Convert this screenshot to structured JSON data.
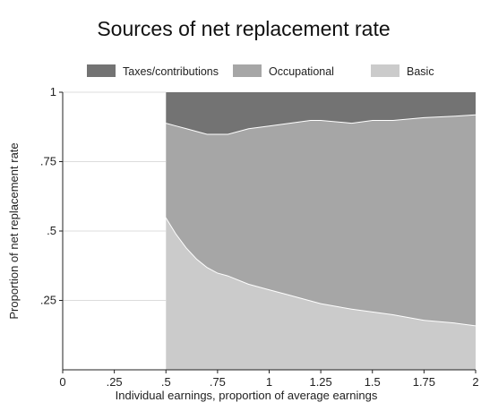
{
  "chart_data": {
    "type": "area",
    "stacked": true,
    "title": "Sources of net replacement rate",
    "xlabel": "Individual earnings, proportion of average earnings",
    "ylabel": "Proportion of net replacement rate",
    "xlim": [
      0,
      2
    ],
    "ylim": [
      0,
      1
    ],
    "x_ticks": [
      "0",
      ".25",
      ".5",
      ".75",
      "1",
      "1.25",
      "1.5",
      "1.75",
      "2"
    ],
    "y_ticks": [
      ".25",
      ".5",
      ".75",
      "1"
    ],
    "grid": false,
    "legend_position": "top",
    "x": [
      0.5,
      0.55,
      0.6,
      0.65,
      0.7,
      0.75,
      0.8,
      0.9,
      1.0,
      1.1,
      1.2,
      1.25,
      1.4,
      1.5,
      1.6,
      1.75,
      1.9,
      2.0
    ],
    "series": [
      {
        "name": "Basic",
        "color": "#cbcbcb",
        "values": [
          0.55,
          0.49,
          0.44,
          0.4,
          0.37,
          0.35,
          0.34,
          0.31,
          0.29,
          0.27,
          0.25,
          0.24,
          0.22,
          0.21,
          0.2,
          0.18,
          0.17,
          0.16
        ]
      },
      {
        "name": "Occupational",
        "color": "#a6a6a6",
        "values": [
          0.34,
          0.39,
          0.43,
          0.46,
          0.48,
          0.5,
          0.51,
          0.56,
          0.59,
          0.62,
          0.65,
          0.66,
          0.67,
          0.69,
          0.7,
          0.73,
          0.745,
          0.76
        ]
      },
      {
        "name": "Taxes/contributions",
        "color": "#737373",
        "values": [
          0.11,
          0.12,
          0.13,
          0.14,
          0.15,
          0.15,
          0.15,
          0.13,
          0.12,
          0.11,
          0.1,
          0.1,
          0.11,
          0.1,
          0.1,
          0.09,
          0.085,
          0.08
        ]
      }
    ]
  }
}
